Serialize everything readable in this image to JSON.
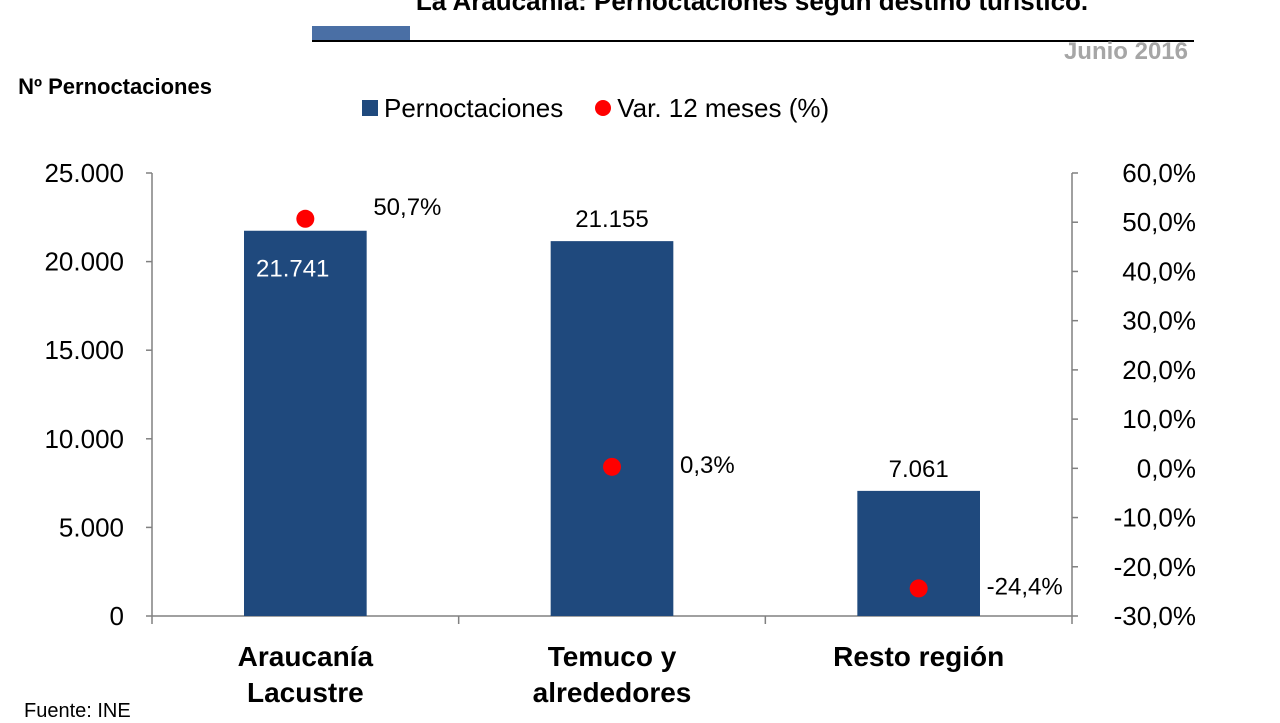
{
  "title": "La Araucanía: Pernoctaciones según destino turístico.",
  "subtitle": "Junio 2016",
  "source": "Fuente: INE",
  "colors": {
    "bar": "#1f497d",
    "dot": "#ff0000",
    "axis": "#808080"
  },
  "chart_data": {
    "type": "bar",
    "categories": [
      "Araucanía Lacustre",
      "Temuco y alrededores",
      "Resto región"
    ],
    "category_lines": [
      [
        "Araucanía",
        "Lacustre"
      ],
      [
        "Temuco y",
        "alrededores"
      ],
      [
        "Resto región"
      ]
    ],
    "series": [
      {
        "name": "Pernoctaciones",
        "type": "bar",
        "axis": "left",
        "values": [
          21741,
          21155,
          7061
        ],
        "labels": [
          "21.741",
          "21.155",
          "7.061"
        ]
      },
      {
        "name": "Var. 12 meses (%)",
        "type": "scatter",
        "axis": "right",
        "values": [
          50.7,
          0.3,
          -24.4
        ],
        "labels": [
          "50,7%",
          "0,3%",
          "-24,4%"
        ]
      }
    ],
    "ylabel": "Nº Pernoctaciones",
    "ylim": [
      0,
      25000
    ],
    "yticks": [
      0,
      5000,
      10000,
      15000,
      20000,
      25000
    ],
    "ytick_labels": [
      "0",
      "5.000",
      "10.000",
      "15.000",
      "20.000",
      "25.000"
    ],
    "y2lim": [
      -30,
      60
    ],
    "y2ticks": [
      -30,
      -20,
      -10,
      0,
      10,
      20,
      30,
      40,
      50,
      60
    ],
    "y2tick_labels": [
      "-30,0%",
      "-20,0%",
      "-10,0%",
      "0,0%",
      "10,0%",
      "20,0%",
      "30,0%",
      "40,0%",
      "50,0%",
      "60,0%"
    ],
    "legend_position": "top",
    "grid": false
  }
}
